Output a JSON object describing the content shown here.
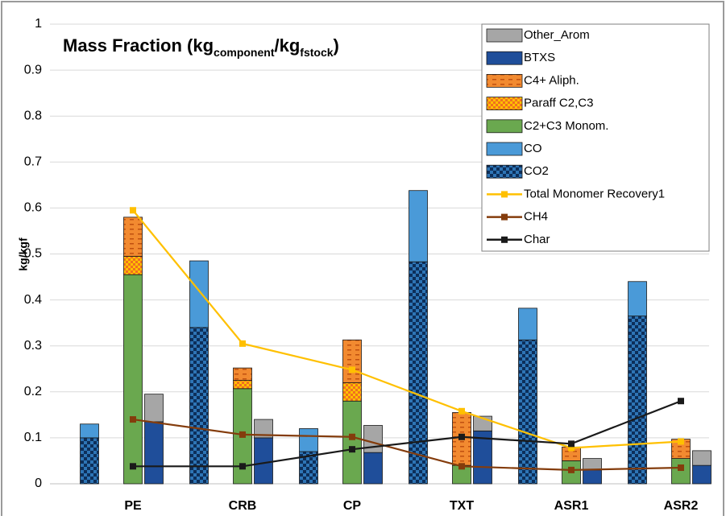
{
  "chart_data": {
    "type": "bar",
    "title": [
      "Mass Fraction (kg",
      "component",
      "/kg",
      "fstock",
      ")"
    ],
    "y_label": "kg/kgf",
    "categories": [
      "PE",
      "CRB",
      "CP",
      "TXT",
      "ASR1",
      "ASR2"
    ],
    "ylim": [
      0,
      1
    ],
    "yticks": [
      0,
      0.1,
      0.2,
      0.3,
      0.4,
      0.5,
      0.6,
      0.7,
      0.8,
      0.9,
      1
    ],
    "grid": true,
    "legend": "upper right",
    "series": [
      {
        "name": "Other_Arom",
        "type": "bar",
        "stack": 2,
        "color": "#a6a6a6",
        "values": [
          0.06,
          0.04,
          0.059,
          0.032,
          0.025,
          0.032
        ]
      },
      {
        "name": "BTXS",
        "type": "bar",
        "stack": 2,
        "color": "#1f4e9a",
        "values": [
          0.135,
          0.1,
          0.068,
          0.115,
          0.03,
          0.04
        ]
      },
      {
        "name": "C4+ Aliph.",
        "type": "bar",
        "stack": 1,
        "color": "#f28a30",
        "pattern": "dash",
        "values": [
          0.085,
          0.027,
          0.093,
          0.115,
          0.03,
          0.042
        ]
      },
      {
        "name": "Paraff C2,C3",
        "type": "bar",
        "stack": 1,
        "color": "#ffc000",
        "pattern": "checker",
        "values": [
          0.04,
          0.018,
          0.04,
          0,
          0,
          0
        ]
      },
      {
        "name": "C2+C3 Monom.",
        "type": "bar",
        "stack": 1,
        "color": "#6aa84f",
        "values": [
          0.455,
          0.207,
          0.18,
          0.04,
          0.05,
          0.055
        ]
      },
      {
        "name": "CO",
        "type": "bar",
        "stack": 0,
        "color": "#4a9ad8",
        "values": [
          0.03,
          0.145,
          0.05,
          0.155,
          0.069,
          0.075
        ]
      },
      {
        "name": "CO2",
        "type": "bar",
        "stack": 0,
        "color": "#2e75b6",
        "pattern": "checker",
        "values": [
          0.1,
          0.34,
          0.07,
          0.483,
          0.313,
          0.365
        ]
      },
      {
        "name": "Total Monomer Recovery1",
        "type": "line",
        "color": "#ffc000",
        "values": [
          0.595,
          0.305,
          0.248,
          0.158,
          0.078,
          0.092
        ]
      },
      {
        "name": "CH4",
        "type": "line",
        "color": "#843c0c",
        "values": [
          0.14,
          0.107,
          0.102,
          0.038,
          0.03,
          0.035
        ]
      },
      {
        "name": "Char",
        "type": "line",
        "color": "#1a1a1a",
        "values": [
          0.038,
          0.038,
          0.075,
          0.102,
          0.087,
          0.18
        ]
      }
    ]
  }
}
